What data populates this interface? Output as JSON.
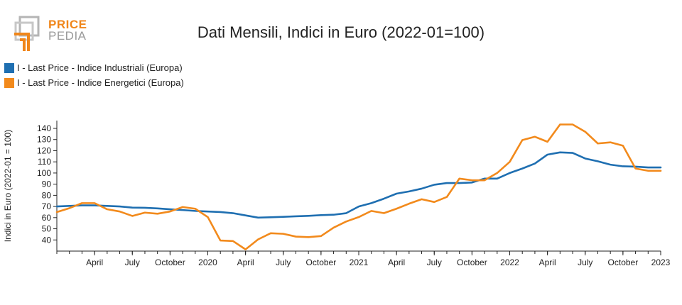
{
  "logo": {
    "line1": "PRICE",
    "line2": "PEDIA"
  },
  "colors": {
    "industrial": "#1f6fb1",
    "energy": "#f28a1c"
  },
  "chart_data": {
    "type": "line",
    "title": "Dati Mensili, Indici in Euro (2022-01=100)",
    "xlabel": "",
    "ylabel": "Indici in Euro (2022-01 = 100)",
    "ylim": [
      30,
      147
    ],
    "yticks": [
      40,
      50,
      60,
      70,
      80,
      90,
      100,
      110,
      120,
      130,
      140
    ],
    "x_start": "2019-01",
    "x_end": "2023-01",
    "xticks": [
      {
        "date": "2019-04",
        "label": "April"
      },
      {
        "date": "2019-07",
        "label": "July"
      },
      {
        "date": "2019-10",
        "label": "October"
      },
      {
        "date": "2020-01",
        "label": "2020"
      },
      {
        "date": "2020-04",
        "label": "April"
      },
      {
        "date": "2020-07",
        "label": "July"
      },
      {
        "date": "2020-10",
        "label": "October"
      },
      {
        "date": "2021-01",
        "label": "2021"
      },
      {
        "date": "2021-04",
        "label": "April"
      },
      {
        "date": "2021-07",
        "label": "July"
      },
      {
        "date": "2021-10",
        "label": "October"
      },
      {
        "date": "2022-01",
        "label": "2022"
      },
      {
        "date": "2022-04",
        "label": "April"
      },
      {
        "date": "2022-07",
        "label": "July"
      },
      {
        "date": "2022-10",
        "label": "October"
      },
      {
        "date": "2023-01",
        "label": "2023"
      }
    ],
    "grid": false,
    "legend_placement": "top-left",
    "x": [
      "2019-01",
      "2019-02",
      "2019-03",
      "2019-04",
      "2019-05",
      "2019-06",
      "2019-07",
      "2019-08",
      "2019-09",
      "2019-10",
      "2019-11",
      "2019-12",
      "2020-01",
      "2020-02",
      "2020-03",
      "2020-04",
      "2020-05",
      "2020-06",
      "2020-07",
      "2020-08",
      "2020-09",
      "2020-10",
      "2020-11",
      "2020-12",
      "2021-01",
      "2021-02",
      "2021-03",
      "2021-04",
      "2021-05",
      "2021-06",
      "2021-07",
      "2021-08",
      "2021-09",
      "2021-10",
      "2021-11",
      "2021-12",
      "2022-01",
      "2022-02",
      "2022-03",
      "2022-04",
      "2022-05",
      "2022-06",
      "2022-07",
      "2022-08",
      "2022-09",
      "2022-10",
      "2022-11",
      "2022-12",
      "2023-01"
    ],
    "series": [
      {
        "name": "I - Last Price - Indice Industriali (Europa)",
        "color": "#1f6fb1",
        "values": [
          70,
          70.5,
          71,
          71,
          70.5,
          70,
          69,
          68.8,
          68.3,
          67.5,
          66.8,
          66,
          65.5,
          65,
          64,
          62,
          60,
          60.3,
          60.7,
          61.2,
          61.6,
          62.2,
          62.6,
          64,
          70,
          73,
          77,
          81.5,
          83.5,
          86,
          89.5,
          91,
          91,
          91.5,
          95,
          95,
          100,
          104,
          108.5,
          116.5,
          118.5,
          118,
          113,
          110.5,
          107.5,
          106,
          105.7,
          105,
          105
        ]
      },
      {
        "name": "I - Last Price - Indice Energetici (Europa)",
        "color": "#f28a1c",
        "values": [
          65,
          68.5,
          73,
          73,
          67.5,
          65.5,
          61.5,
          64.5,
          63.5,
          65.5,
          69.5,
          68,
          60.5,
          39.5,
          39,
          31.5,
          40.5,
          46,
          45.5,
          43,
          42.5,
          43.5,
          51,
          56.5,
          60.5,
          66,
          64,
          68,
          72.5,
          76.5,
          74,
          78.5,
          95,
          93.5,
          93.5,
          100,
          110,
          129.5,
          132.5,
          128,
          143.5,
          143.5,
          137,
          126.5,
          127.5,
          124.5,
          104,
          102,
          102
        ]
      }
    ]
  }
}
